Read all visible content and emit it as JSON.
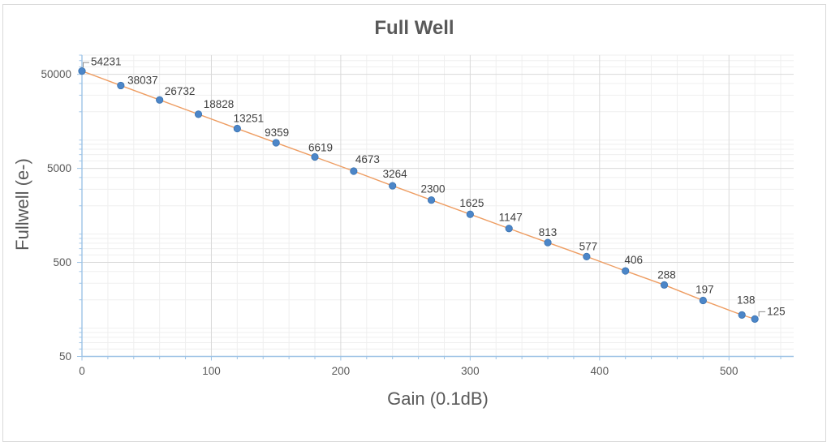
{
  "chart_data": {
    "type": "line",
    "title": "Full Well",
    "xlabel": "Gain (0.1dB)",
    "ylabel": "Fullwell (e-)",
    "x": [
      0,
      30,
      60,
      90,
      120,
      150,
      180,
      210,
      240,
      270,
      300,
      330,
      360,
      390,
      420,
      450,
      480,
      510,
      520
    ],
    "values": [
      54231,
      38037,
      26732,
      18828,
      13251,
      9359,
      6619,
      4673,
      3264,
      2300,
      1625,
      1147,
      813,
      577,
      406,
      288,
      197,
      138,
      125
    ],
    "point_labels": [
      "54231",
      "38037",
      "26732",
      "18828",
      "13251",
      "9359",
      "6619",
      "4673",
      "3264",
      "2300",
      "1625",
      "1147",
      "813",
      "577",
      "406",
      "288",
      "197",
      "138",
      "125"
    ],
    "x_tick_values": [
      0,
      100,
      200,
      300,
      400,
      500
    ],
    "x_tick_labels": [
      "0",
      "100",
      "200",
      "300",
      "400",
      "500"
    ],
    "y_tick_values": [
      50,
      500,
      5000,
      50000
    ],
    "y_tick_labels": [
      "50",
      "500",
      "5000",
      "50000"
    ],
    "xlim": [
      0,
      550
    ],
    "ylim": [
      50,
      80000
    ],
    "y_scale": "log",
    "x_minor_step": 20,
    "grid": "major-and-minor",
    "legend": "none",
    "colors": {
      "line": "#EE9D62",
      "marker_fill": "#4C86C8",
      "marker_stroke": "#3A72B0",
      "axis_line": "#9DC3E6",
      "major_grid": "#D9D9D9",
      "minor_grid": "#EFEFEF",
      "leader_line": "#8C8C8C",
      "data_label_text": "#404040",
      "tick_label_text": "#595959",
      "title_text": "#595959"
    }
  }
}
